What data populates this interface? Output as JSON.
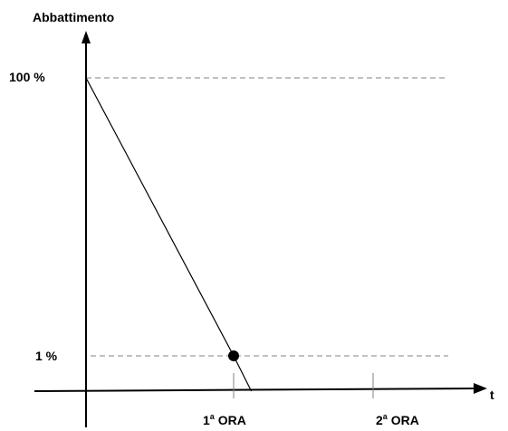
{
  "chart_data": {
    "type": "line",
    "ylabel": "Abbattimento",
    "xlabel": "t",
    "y_ticks": [
      {
        "label": "100 %",
        "value": 100
      },
      {
        "label": "1 %",
        "value": 1
      }
    ],
    "x_ticks": [
      {
        "main": "1",
        "sup": "a",
        "rest": " ORA",
        "value": 1
      },
      {
        "main": "2",
        "sup": "a",
        "rest": " ORA",
        "value": 2
      }
    ],
    "series": [
      {
        "points": [
          {
            "x": 0,
            "y": 100
          },
          {
            "x": 1,
            "y": 1
          },
          {
            "x": 1.12,
            "y": -3
          }
        ]
      }
    ],
    "marker": {
      "x": 1,
      "y": 1
    },
    "grid": "dashed reference lines at 100 % and 1 %",
    "colors": {
      "line": "#000000",
      "reference": "#808080"
    }
  }
}
